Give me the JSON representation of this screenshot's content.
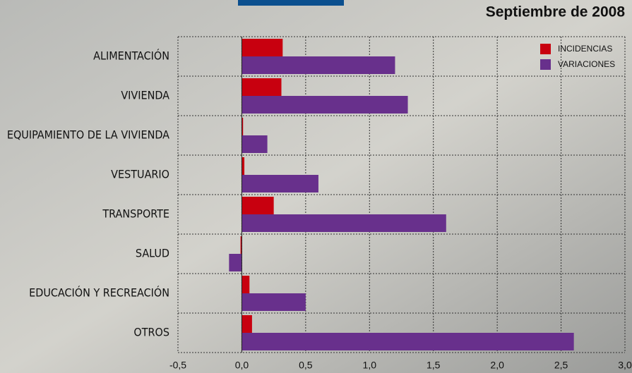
{
  "chart_data": {
    "type": "bar",
    "orientation": "horizontal",
    "title": "Septiembre de 2008",
    "categories": [
      "ALIMENTACIÓN",
      "VIVIENDA",
      "EQUIPAMIENTO DE LA VIVIENDA",
      "VESTUARIO",
      "TRANSPORTE",
      "SALUD",
      "EDUCACIÓN Y RECREACIÓN",
      "OTROS"
    ],
    "series": [
      {
        "name": "INCIDENCIAS",
        "color": "#c8000f",
        "values": [
          0.32,
          0.31,
          0.01,
          0.02,
          0.25,
          -0.01,
          0.06,
          0.08
        ]
      },
      {
        "name": "VARIACIONES",
        "color": "#68308c",
        "values": [
          1.2,
          1.3,
          0.2,
          0.6,
          1.6,
          -0.1,
          0.5,
          2.6
        ]
      }
    ],
    "xlim": [
      -0.5,
      3.0
    ],
    "xticks": [
      {
        "value": -0.5,
        "label": "-0,5"
      },
      {
        "value": 0,
        "label": "0,0"
      },
      {
        "value": 0.5,
        "label": "0,5"
      },
      {
        "value": 1.0,
        "label": "1,0"
      },
      {
        "value": 1.5,
        "label": "1,5"
      },
      {
        "value": 2.0,
        "label": "2,0"
      },
      {
        "value": 2.5,
        "label": "2,5"
      },
      {
        "value": 3.0,
        "label": "3,0"
      }
    ],
    "grid": true,
    "legend": "top-right"
  }
}
